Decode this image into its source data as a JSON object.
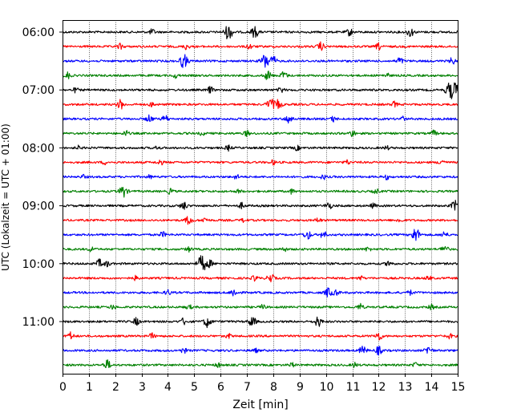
{
  "chart_data": {
    "type": "line",
    "xlabel": "Zeit  [min]",
    "ylabel": "UTC (Lokalzeit = UTC + 01:00)",
    "xlim": [
      0,
      15
    ],
    "x_ticks": [
      "0",
      "1",
      "2",
      "3",
      "4",
      "5",
      "6",
      "7",
      "8",
      "9",
      "10",
      "11",
      "12",
      "13",
      "14",
      "15"
    ],
    "y_ticks": [
      "06:00",
      "07:00",
      "08:00",
      "09:00",
      "10:00",
      "11:00"
    ],
    "y_tick_traces": [
      0,
      4,
      8,
      12,
      16,
      20
    ],
    "grid": "x-dotted",
    "trace_count": 24,
    "trace_colors": [
      "#000000",
      "#ff0000",
      "#0000ff",
      "#008000"
    ],
    "minutes_per_trace": 15,
    "series_bursts": [
      [
        [
          6.3,
          1.6
        ],
        [
          7.3,
          1.2
        ],
        [
          10.9,
          0.8
        ],
        [
          13.2,
          1.0
        ],
        [
          3.4,
          0.6
        ]
      ],
      [
        [
          2.2,
          0.6
        ],
        [
          4.7,
          0.6
        ],
        [
          7.1,
          0.6
        ],
        [
          9.8,
          0.9
        ],
        [
          12.0,
          0.7
        ]
      ],
      [
        [
          4.6,
          1.5
        ],
        [
          7.7,
          1.6
        ],
        [
          8.0,
          1.0
        ],
        [
          12.8,
          0.8
        ],
        [
          14.8,
          0.7
        ]
      ],
      [
        [
          0.2,
          0.7
        ],
        [
          7.8,
          1.0
        ],
        [
          8.4,
          0.9
        ],
        [
          4.3,
          0.5
        ],
        [
          12.3,
          0.5
        ]
      ],
      [
        [
          5.6,
          0.7
        ],
        [
          8.3,
          0.6
        ],
        [
          14.7,
          1.6
        ],
        [
          14.9,
          1.3
        ],
        [
          0.5,
          0.5
        ]
      ],
      [
        [
          2.2,
          1.0
        ],
        [
          7.9,
          1.3
        ],
        [
          8.2,
          1.0
        ],
        [
          12.6,
          0.6
        ],
        [
          3.4,
          0.5
        ]
      ],
      [
        [
          3.3,
          0.8
        ],
        [
          3.9,
          0.8
        ],
        [
          8.6,
          1.0
        ],
        [
          10.3,
          0.6
        ],
        [
          12.9,
          0.5
        ]
      ],
      [
        [
          2.4,
          0.6
        ],
        [
          7.0,
          0.6
        ],
        [
          11.0,
          0.7
        ],
        [
          14.1,
          0.6
        ],
        [
          5.3,
          0.4
        ]
      ],
      [
        [
          6.3,
          0.6
        ],
        [
          8.9,
          0.5
        ],
        [
          3.6,
          0.4
        ],
        [
          12.3,
          0.4
        ],
        [
          0.6,
          0.4
        ]
      ],
      [
        [
          3.7,
          0.6
        ],
        [
          14.4,
          0.7
        ],
        [
          8.0,
          0.5
        ],
        [
          10.8,
          0.5
        ],
        [
          1.6,
          0.4
        ]
      ],
      [
        [
          6.6,
          0.5
        ],
        [
          9.9,
          0.5
        ],
        [
          12.3,
          0.5
        ],
        [
          3.3,
          0.4
        ],
        [
          0.8,
          0.4
        ]
      ],
      [
        [
          2.3,
          1.3
        ],
        [
          4.1,
          0.6
        ],
        [
          8.7,
          0.5
        ],
        [
          11.9,
          0.5
        ],
        [
          6.7,
          0.4
        ]
      ],
      [
        [
          4.6,
          0.9
        ],
        [
          6.8,
          0.6
        ],
        [
          10.1,
          0.8
        ],
        [
          14.9,
          1.1
        ],
        [
          11.8,
          0.5
        ]
      ],
      [
        [
          4.8,
          1.0
        ],
        [
          5.4,
          0.6
        ],
        [
          6.9,
          0.5
        ],
        [
          9.7,
          0.5
        ],
        [
          12.8,
          0.5
        ]
      ],
      [
        [
          3.8,
          0.6
        ],
        [
          9.3,
          1.0
        ],
        [
          9.9,
          0.8
        ],
        [
          13.4,
          1.5
        ],
        [
          14.5,
          0.7
        ]
      ],
      [
        [
          1.1,
          0.6
        ],
        [
          4.8,
          0.5
        ],
        [
          8.4,
          0.5
        ],
        [
          11.6,
          0.5
        ],
        [
          14.5,
          0.9
        ]
      ],
      [
        [
          1.4,
          0.9
        ],
        [
          1.7,
          0.6
        ],
        [
          5.3,
          1.8
        ],
        [
          5.6,
          0.7
        ],
        [
          12.4,
          0.7
        ]
      ],
      [
        [
          2.8,
          0.5
        ],
        [
          7.3,
          0.6
        ],
        [
          7.9,
          1.0
        ],
        [
          11.3,
          0.5
        ],
        [
          13.9,
          0.5
        ]
      ],
      [
        [
          4.0,
          0.6
        ],
        [
          6.5,
          0.9
        ],
        [
          10.1,
          1.1
        ],
        [
          10.4,
          0.6
        ],
        [
          13.2,
          0.5
        ]
      ],
      [
        [
          1.9,
          0.5
        ],
        [
          4.8,
          0.5
        ],
        [
          7.6,
          0.5
        ],
        [
          11.3,
          0.7
        ],
        [
          14.0,
          0.5
        ]
      ],
      [
        [
          2.8,
          0.8
        ],
        [
          4.6,
          0.7
        ],
        [
          5.5,
          1.2
        ],
        [
          7.2,
          1.1
        ],
        [
          9.7,
          1.1
        ]
      ],
      [
        [
          0.3,
          0.8
        ],
        [
          3.4,
          0.6
        ],
        [
          6.3,
          0.5
        ],
        [
          12.0,
          1.0
        ],
        [
          14.7,
          0.5
        ]
      ],
      [
        [
          4.6,
          0.6
        ],
        [
          11.4,
          1.0
        ],
        [
          12.0,
          0.9
        ],
        [
          13.9,
          1.0
        ],
        [
          7.3,
          0.5
        ]
      ],
      [
        [
          1.7,
          1.0
        ],
        [
          5.9,
          0.5
        ],
        [
          8.7,
          0.5
        ],
        [
          11.1,
          0.5
        ],
        [
          13.4,
          0.5
        ]
      ]
    ]
  }
}
